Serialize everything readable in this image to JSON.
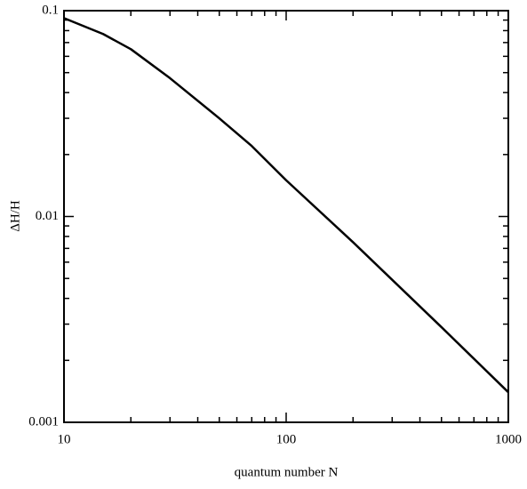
{
  "chart_data": {
    "type": "line",
    "x_label": "quantum number N",
    "y_label": "ΔH/H",
    "x": [
      10,
      15,
      20,
      30,
      50,
      70,
      100,
      200,
      500,
      1000
    ],
    "series": [
      {
        "color": "#000000",
        "values": [
          0.092,
          0.077,
          0.065,
          0.047,
          0.03,
          0.022,
          0.015,
          0.0075,
          0.0029,
          0.0014
        ]
      }
    ],
    "xscale": "log",
    "yscale": "log",
    "xlim": [
      10,
      1000
    ],
    "ylim": [
      0.001,
      0.1
    ],
    "xticks": [
      10,
      100,
      1000
    ],
    "yticks": [
      0.001,
      0.01,
      0.1
    ]
  }
}
